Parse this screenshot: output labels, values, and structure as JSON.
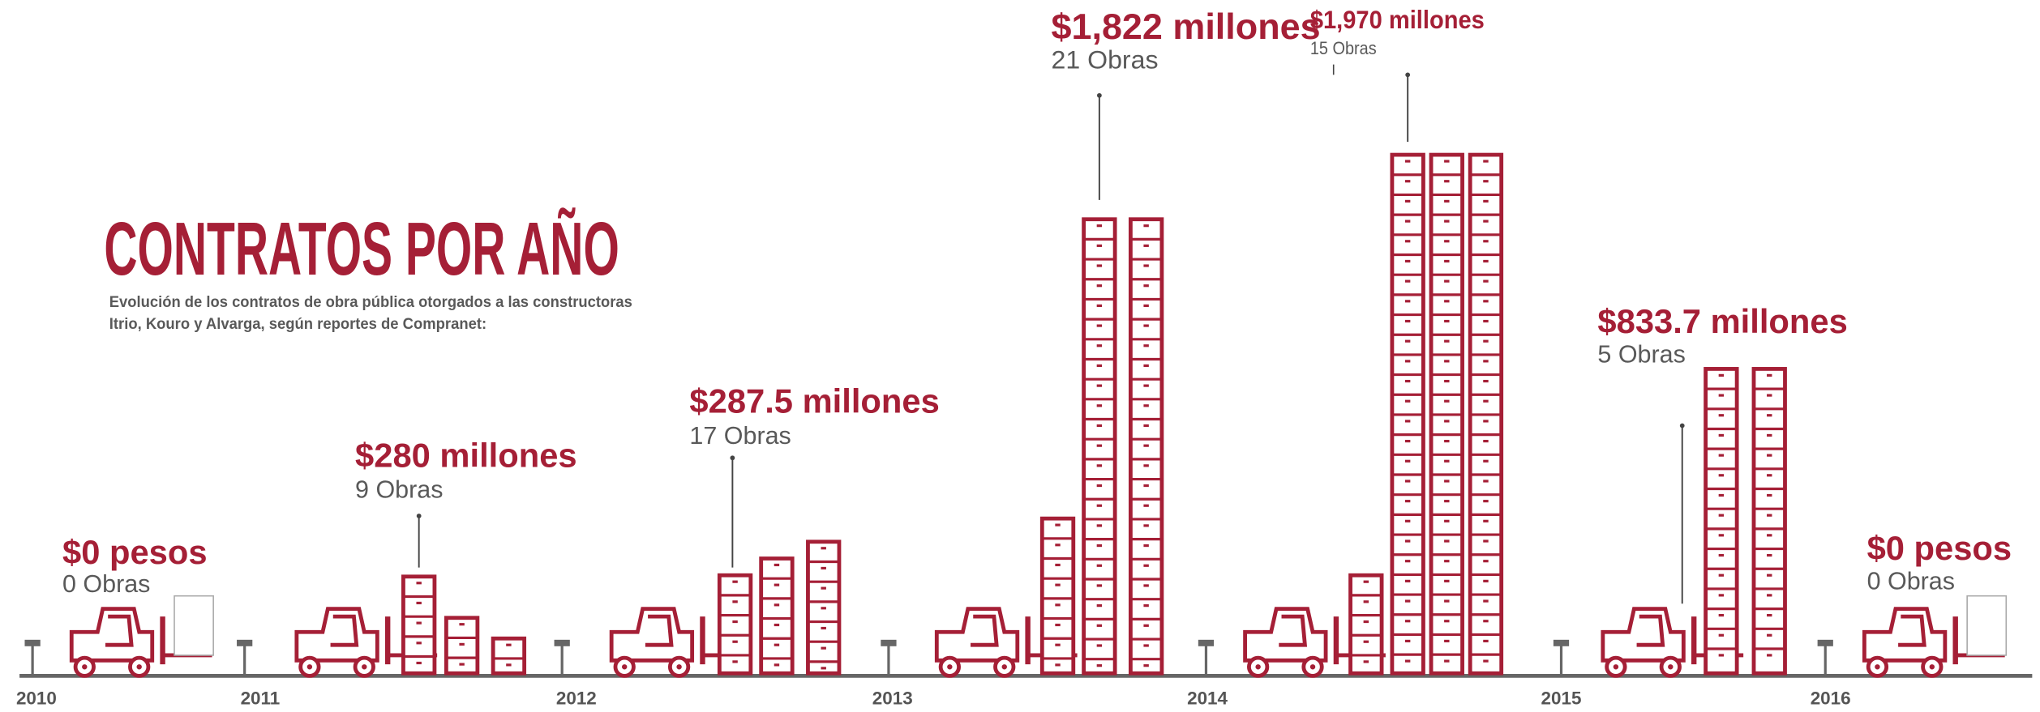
{
  "title": "CONTRATOS POR AÑO",
  "subtitle": [
    "Evolución de los contratos de obra pública otorgados a las constructoras",
    "Itrio, Kouro y Alvarga, según reportes de Compranet:"
  ],
  "years": [
    "2010",
    "2011",
    "2012",
    "2013",
    "2014",
    "2015",
    "2016"
  ],
  "entries": [
    {
      "amount": "$0 pesos",
      "works": "0 Obras"
    },
    {
      "amount": "$280 millones",
      "works": "9 Obras"
    },
    {
      "amount": "$287.5 millones",
      "works": "17 Obras"
    },
    {
      "amount": "$1,822 millones",
      "works": "21 Obras"
    },
    {
      "amount": "$1,970 millones",
      "works": "15 Obras"
    },
    {
      "amount": "$833.7 millones",
      "works": "5 Obras"
    },
    {
      "amount": "$0 pesos",
      "works": "0 Obras"
    }
  ]
}
